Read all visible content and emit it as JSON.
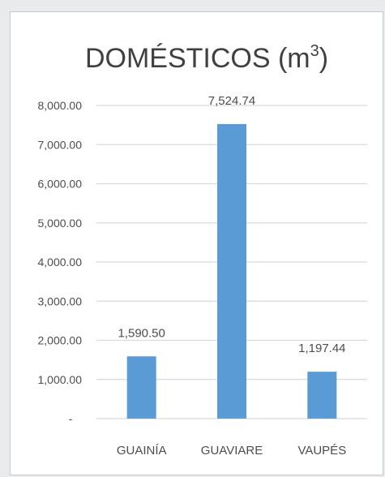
{
  "chart_data": {
    "type": "bar",
    "title": "DOMÉSTICOS (m",
    "title_superscript": "3",
    "title_suffix": ")",
    "categories": [
      "GUAINÍA",
      "GUAVIARE",
      "VAUPÉS"
    ],
    "values": [
      1590.5,
      7524.74,
      1197.44
    ],
    "data_labels": [
      "1,590.50",
      "7,524.74",
      "1,197.44"
    ],
    "ylim": [
      0,
      8000
    ],
    "yticks": [
      0,
      1000,
      2000,
      3000,
      4000,
      5000,
      6000,
      7000,
      8000
    ],
    "ytick_labels": [
      "-",
      "1,000.00",
      "2,000.00",
      "3,000.00",
      "4,000.00",
      "5,000.00",
      "6,000.00",
      "7,000.00",
      "8,000.00"
    ],
    "grid": true,
    "legend": false,
    "bar_color": "#5b9bd5",
    "grid_color": "#d9d9d9",
    "text_color": "#404040"
  }
}
